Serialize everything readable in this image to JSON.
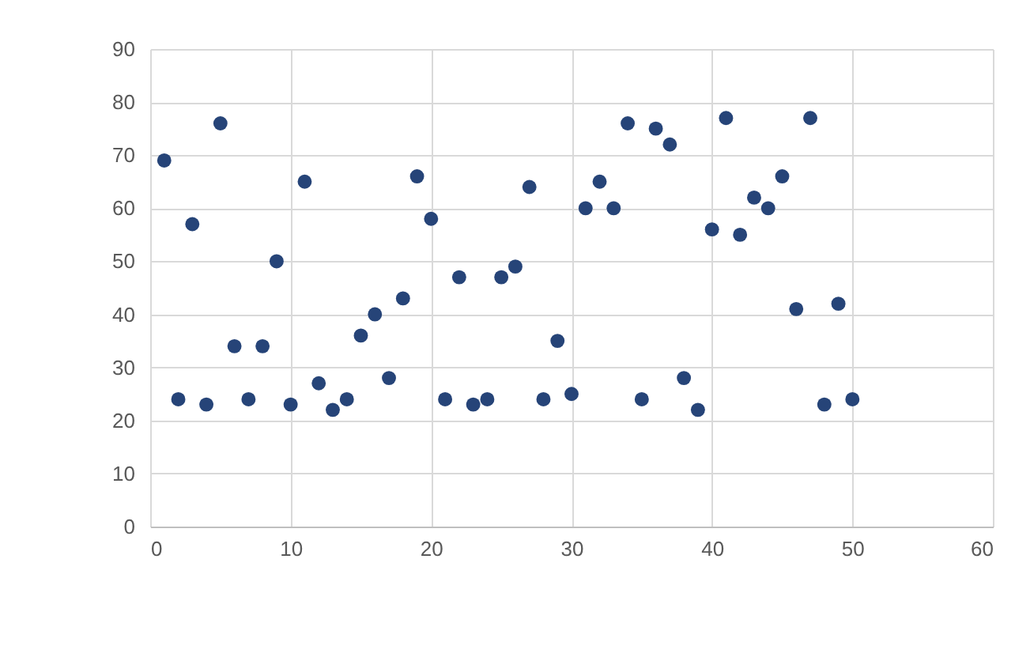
{
  "chart_data": {
    "type": "scatter",
    "marker": "circle",
    "grid": true,
    "x": [
      1,
      2,
      3,
      4,
      5,
      6,
      7,
      8,
      9,
      10,
      11,
      12,
      13,
      14,
      15,
      16,
      17,
      18,
      19,
      20,
      21,
      22,
      23,
      24,
      25,
      26,
      27,
      28,
      29,
      30,
      31,
      32,
      33,
      34,
      35,
      36,
      37,
      38,
      39,
      40,
      41,
      42,
      43,
      44,
      45,
      46,
      47,
      48,
      49,
      50
    ],
    "series": [
      {
        "color": "#264478",
        "values": [
          69,
          24,
          57,
          23,
          76,
          34,
          24,
          34,
          50,
          23,
          65,
          27,
          22,
          24,
          36,
          40,
          28,
          43,
          66,
          58,
          24,
          47,
          23,
          24,
          47,
          49,
          64,
          24,
          35,
          25,
          60,
          65,
          60,
          76,
          24,
          75,
          72,
          28,
          22,
          56,
          77,
          55,
          62,
          60,
          66,
          41,
          77,
          23,
          42,
          24
        ]
      }
    ],
    "xlim": [
      0,
      60
    ],
    "xticks": [
      0,
      10,
      20,
      30,
      40,
      50,
      60
    ],
    "ylim": [
      0,
      90
    ],
    "yticks": [
      0,
      10,
      20,
      30,
      40,
      50,
      60,
      70,
      80,
      90
    ]
  }
}
